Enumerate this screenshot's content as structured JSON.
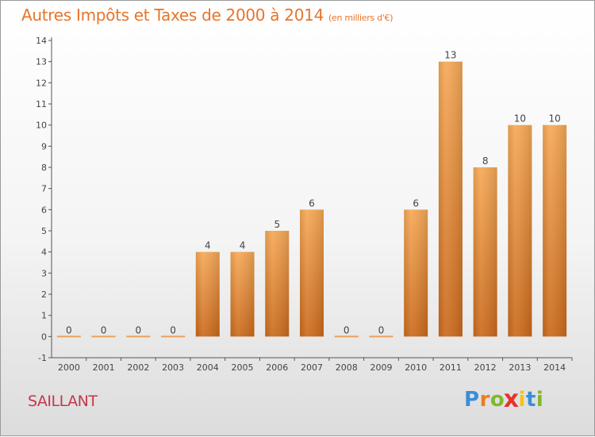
{
  "header": {
    "title": "Autres Impôts et Taxes de 2000 à 2014",
    "unit": "(en milliers d'€)"
  },
  "footer": {
    "commune": "SAILLANT",
    "logo": {
      "letters": [
        "P",
        "r",
        "o",
        "x",
        "i",
        "t",
        "i"
      ],
      "colors": [
        "#3a8fd6",
        "#f07c1c",
        "#7fb82a",
        "#e8322a",
        "#f3c313",
        "#3a8fd6",
        "#7fb82a"
      ]
    }
  },
  "colors": {
    "bar": "#e8842e",
    "bar_light": "#f5a553",
    "bar_dark": "#c8661a",
    "axis": "#555555",
    "label": "#444444"
  },
  "chart_data": {
    "type": "bar",
    "title": "Autres Impôts et Taxes de 2000 à 2014",
    "unit": "en milliers d'€",
    "categories": [
      "2000",
      "2001",
      "2002",
      "2003",
      "2004",
      "2005",
      "2006",
      "2007",
      "2008",
      "2009",
      "2010",
      "2011",
      "2012",
      "2013",
      "2014"
    ],
    "values": [
      0,
      0,
      0,
      0,
      4,
      4,
      5,
      6,
      0,
      0,
      6,
      13,
      8,
      10,
      10
    ],
    "ylim": [
      -1,
      14
    ],
    "yticks": [
      -1,
      0,
      1,
      2,
      3,
      4,
      5,
      6,
      7,
      8,
      9,
      10,
      11,
      12,
      13,
      14
    ],
    "grid": false,
    "legend": "none"
  }
}
